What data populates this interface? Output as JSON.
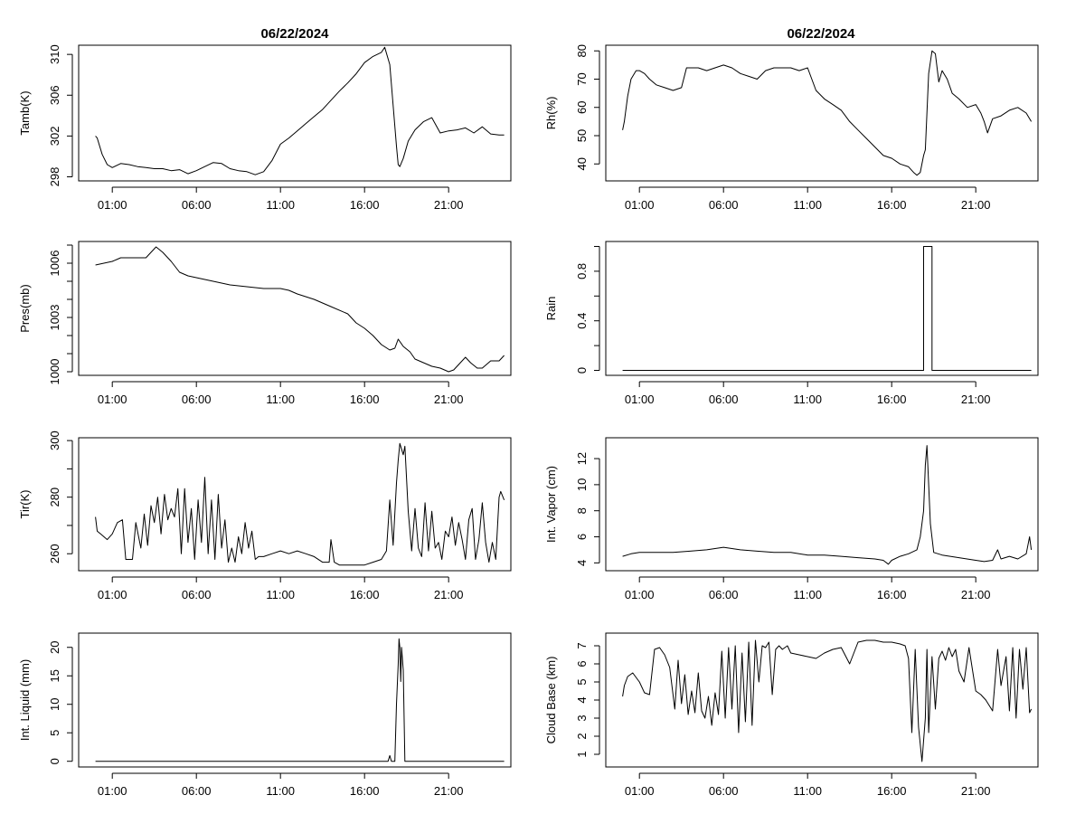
{
  "figure": {
    "date_left": "06/22/2024",
    "date_right": "06/22/2024"
  },
  "chart_data": [
    {
      "id": "tamb",
      "type": "line",
      "ylabel": "Tamb(K)",
      "title": "06/22/2024",
      "xlim": [
        -1.0,
        24.7
      ],
      "ylim": [
        297.6,
        310.9
      ],
      "yticks": [
        298,
        302,
        306,
        310
      ],
      "xticks": [
        "01:00",
        "06:00",
        "11:00",
        "16:00",
        "21:00"
      ],
      "xtick_values": [
        1,
        6,
        11,
        16,
        21
      ],
      "x": [
        0,
        0.1,
        0.4,
        0.7,
        1.0,
        1.5,
        2.0,
        2.5,
        3.0,
        3.5,
        4.0,
        4.5,
        5.0,
        5.5,
        6.0,
        6.5,
        7.0,
        7.5,
        8.0,
        8.5,
        9.0,
        9.5,
        10.0,
        10.5,
        11.0,
        11.5,
        12.0,
        12.5,
        13.0,
        13.5,
        14.0,
        14.5,
        15.0,
        15.5,
        16.0,
        16.5,
        17.0,
        17.2,
        17.5,
        17.7,
        17.9,
        18.0,
        18.1,
        18.3,
        18.6,
        19.0,
        19.5,
        20.0,
        20.5,
        21.0,
        21.5,
        22.0,
        22.5,
        23.0,
        23.5,
        24.0,
        24.3
      ],
      "y": [
        302.0,
        301.8,
        300.2,
        299.2,
        298.9,
        299.3,
        299.2,
        299.0,
        298.9,
        298.8,
        298.8,
        298.6,
        298.7,
        298.3,
        298.6,
        299.0,
        299.4,
        299.3,
        298.8,
        298.6,
        298.5,
        298.2,
        298.5,
        299.6,
        301.2,
        301.8,
        302.5,
        303.2,
        303.9,
        304.6,
        305.5,
        306.4,
        307.2,
        308.1,
        309.2,
        309.8,
        310.2,
        310.7,
        309.0,
        305.0,
        301.0,
        299.2,
        299.0,
        299.8,
        301.5,
        302.6,
        303.4,
        303.8,
        302.3,
        302.5,
        302.6,
        302.8,
        302.3,
        302.9,
        302.2,
        302.1,
        302.1
      ]
    },
    {
      "id": "pres",
      "type": "line",
      "ylabel": "Pres(mb)",
      "title": "",
      "xlim": [
        -1.0,
        24.7
      ],
      "ylim": [
        999.8,
        1007.2
      ],
      "yticks": [
        1000,
        1003,
        1006
      ],
      "yticks_minor": [
        1001,
        1002,
        1004,
        1005,
        1007
      ],
      "xticks": [
        "01:00",
        "06:00",
        "11:00",
        "16:00",
        "21:00"
      ],
      "xtick_values": [
        1,
        6,
        11,
        16,
        21
      ],
      "x": [
        0,
        0.5,
        1.0,
        1.5,
        2.0,
        2.5,
        3.0,
        3.3,
        3.6,
        4.0,
        4.5,
        5.0,
        5.5,
        6.0,
        7.0,
        8.0,
        9.0,
        10.0,
        11.0,
        11.5,
        12.0,
        13.0,
        14.0,
        15.0,
        15.5,
        16.0,
        16.5,
        17.0,
        17.5,
        17.8,
        18.0,
        18.3,
        18.7,
        19.0,
        19.5,
        20.0,
        20.5,
        21.0,
        21.3,
        21.7,
        22.0,
        22.3,
        22.7,
        23.0,
        23.5,
        24.0,
        24.3
      ],
      "y": [
        1005.9,
        1006.0,
        1006.1,
        1006.3,
        1006.3,
        1006.3,
        1006.3,
        1006.6,
        1006.9,
        1006.6,
        1006.1,
        1005.5,
        1005.3,
        1005.2,
        1005.0,
        1004.8,
        1004.7,
        1004.6,
        1004.6,
        1004.5,
        1004.3,
        1004.0,
        1003.6,
        1003.2,
        1002.7,
        1002.4,
        1002.0,
        1001.5,
        1001.2,
        1001.3,
        1001.8,
        1001.4,
        1001.1,
        1000.7,
        1000.5,
        1000.3,
        1000.2,
        1000.0,
        1000.1,
        1000.5,
        1000.8,
        1000.5,
        1000.2,
        1000.2,
        1000.6,
        1000.6,
        1000.9
      ]
    },
    {
      "id": "tir",
      "type": "line",
      "ylabel": "Tir(K)",
      "title": "",
      "xlim": [
        -1.0,
        24.7
      ],
      "ylim": [
        254.0,
        301.0
      ],
      "yticks": [
        260,
        280,
        300
      ],
      "yticks_minor": [
        270,
        290
      ],
      "xticks": [
        "01:00",
        "06:00",
        "11:00",
        "16:00",
        "21:00"
      ],
      "xtick_values": [
        1,
        6,
        11,
        16,
        21
      ],
      "x": [
        0,
        0.1,
        0.3,
        0.7,
        1.0,
        1.3,
        1.6,
        1.8,
        2.0,
        2.2,
        2.4,
        2.7,
        2.9,
        3.1,
        3.3,
        3.5,
        3.7,
        3.9,
        4.1,
        4.3,
        4.5,
        4.7,
        4.9,
        5.1,
        5.3,
        5.5,
        5.7,
        5.9,
        6.1,
        6.3,
        6.5,
        6.7,
        6.9,
        7.1,
        7.3,
        7.5,
        7.7,
        7.9,
        8.1,
        8.3,
        8.5,
        8.7,
        8.9,
        9.1,
        9.3,
        9.5,
        9.7,
        10.0,
        10.5,
        11.0,
        11.5,
        12.0,
        12.5,
        13.0,
        13.5,
        13.9,
        14.0,
        14.2,
        14.5,
        15.0,
        15.5,
        16.0,
        16.5,
        17.0,
        17.3,
        17.5,
        17.7,
        17.9,
        18.0,
        18.1,
        18.3,
        18.4,
        18.6,
        18.8,
        19.0,
        19.2,
        19.4,
        19.6,
        19.8,
        20.0,
        20.2,
        20.4,
        20.6,
        20.8,
        21.0,
        21.2,
        21.4,
        21.6,
        21.8,
        22.0,
        22.2,
        22.4,
        22.6,
        22.8,
        23.0,
        23.2,
        23.4,
        23.6,
        23.8,
        24.0,
        24.1,
        24.3
      ],
      "y": [
        273,
        268,
        267,
        265,
        267,
        271,
        272,
        258,
        258,
        258,
        271,
        262,
        274,
        263,
        277,
        271,
        280,
        267,
        281,
        272,
        276,
        273,
        283,
        260,
        283,
        264,
        276,
        258,
        279,
        264,
        287,
        260,
        279,
        258,
        281,
        262,
        272,
        257,
        262,
        257,
        266,
        260,
        271,
        262,
        268,
        258,
        259,
        259,
        260,
        261,
        260,
        261,
        260,
        259,
        257,
        257,
        265,
        257,
        256,
        256,
        256,
        256,
        257,
        258,
        261,
        279,
        263,
        285,
        293,
        299,
        295,
        298,
        275,
        261,
        276,
        262,
        259,
        278,
        261,
        275,
        262,
        264,
        258,
        268,
        266,
        273,
        263,
        271,
        265,
        258,
        272,
        276,
        258,
        265,
        278,
        264,
        257,
        264,
        258,
        280,
        282,
        279
      ]
    },
    {
      "id": "liq",
      "type": "line",
      "ylabel": "Int. Liquid (mm)",
      "title": "",
      "xlim": [
        -1.0,
        24.7
      ],
      "ylim": [
        -1.0,
        22.5
      ],
      "yticks": [
        0,
        5,
        10,
        15,
        20
      ],
      "xticks": [
        "01:00",
        "06:00",
        "11:00",
        "16:00",
        "21:00"
      ],
      "xtick_values": [
        1,
        6,
        11,
        16,
        21
      ],
      "x": [
        0,
        17.0,
        17.4,
        17.5,
        17.6,
        17.8,
        17.9,
        18.0,
        18.05,
        18.1,
        18.15,
        18.2,
        18.3,
        18.4,
        24.3
      ],
      "y": [
        0,
        0,
        0,
        1.0,
        0,
        0,
        10,
        17,
        21.5,
        20,
        14,
        20,
        16,
        0,
        0
      ]
    },
    {
      "id": "rh",
      "type": "line",
      "ylabel": "Rh(%)",
      "title": "06/22/2024",
      "xlim": [
        -1.0,
        24.7
      ],
      "ylim": [
        34.0,
        82.0
      ],
      "yticks": [
        40,
        50,
        60,
        70,
        80
      ],
      "xticks": [
        "01:00",
        "06:00",
        "11:00",
        "16:00",
        "21:00"
      ],
      "xtick_values": [
        1,
        6,
        11,
        16,
        21
      ],
      "x": [
        0,
        0.1,
        0.3,
        0.5,
        0.8,
        1.0,
        1.3,
        1.6,
        2.0,
        2.5,
        3.0,
        3.5,
        3.8,
        4.0,
        4.5,
        5.0,
        5.5,
        6.0,
        6.5,
        7.0,
        7.5,
        8.0,
        8.5,
        9.0,
        9.5,
        10.0,
        10.5,
        11.0,
        11.5,
        12.0,
        12.5,
        13.0,
        13.5,
        14.0,
        14.5,
        15.0,
        15.5,
        16.0,
        16.5,
        17.0,
        17.3,
        17.5,
        17.7,
        17.9,
        18.0,
        18.2,
        18.4,
        18.6,
        18.8,
        19.0,
        19.3,
        19.6,
        20.0,
        20.5,
        21.0,
        21.3,
        21.5,
        21.7,
        22.0,
        22.5,
        23.0,
        23.5,
        24.0,
        24.3
      ],
      "y": [
        52,
        55,
        64,
        70,
        73,
        73,
        72,
        70,
        68,
        67,
        66,
        67,
        74,
        74,
        74,
        73,
        74,
        75,
        74,
        72,
        71,
        70,
        73,
        74,
        74,
        74,
        73,
        74,
        66,
        63,
        61,
        59,
        55,
        52,
        49,
        46,
        43,
        42,
        40,
        39,
        37,
        36,
        37,
        43,
        45,
        72,
        80,
        79,
        69,
        73,
        70,
        65,
        63,
        60,
        61,
        58,
        55,
        51,
        56,
        57,
        59,
        60,
        58,
        55
      ]
    },
    {
      "id": "rain",
      "type": "line",
      "ylabel": "Rain",
      "title": "",
      "xlim": [
        -1.0,
        24.7
      ],
      "ylim": [
        -0.04,
        1.04
      ],
      "yticks": [
        0.0,
        0.4,
        0.8
      ],
      "yticks_minor": [
        0.2,
        0.6,
        1.0
      ],
      "xticks": [
        "01:00",
        "06:00",
        "11:00",
        "16:00",
        "21:00"
      ],
      "xtick_values": [
        1,
        6,
        11,
        16,
        21
      ],
      "x": [
        0,
        17.9,
        17.9,
        18.4,
        18.4,
        24.3
      ],
      "y": [
        0,
        0,
        1,
        1,
        0,
        0
      ]
    },
    {
      "id": "vapor",
      "type": "line",
      "ylabel": "Int. Vapor (cm)",
      "title": "",
      "xlim": [
        -1.0,
        24.7
      ],
      "ylim": [
        3.4,
        13.6
      ],
      "yticks": [
        4,
        6,
        8,
        10,
        12
      ],
      "xticks": [
        "01:00",
        "06:00",
        "11:00",
        "16:00",
        "21:00"
      ],
      "xtick_values": [
        1,
        6,
        11,
        16,
        21
      ],
      "x": [
        0,
        0.5,
        1.0,
        2.0,
        3.0,
        4.0,
        5.0,
        6.0,
        6.5,
        7.0,
        8.0,
        9.0,
        10.0,
        11.0,
        12.0,
        13.0,
        14.0,
        15.0,
        15.5,
        15.8,
        16.0,
        16.5,
        17.0,
        17.5,
        17.7,
        17.9,
        18.0,
        18.1,
        18.2,
        18.3,
        18.5,
        19.0,
        20.0,
        21.0,
        21.5,
        22.0,
        22.3,
        22.5,
        23.0,
        23.5,
        24.0,
        24.2,
        24.3
      ],
      "y": [
        4.5,
        4.7,
        4.8,
        4.8,
        4.8,
        4.9,
        5.0,
        5.2,
        5.1,
        5.0,
        4.9,
        4.8,
        4.8,
        4.6,
        4.6,
        4.5,
        4.4,
        4.3,
        4.2,
        3.9,
        4.2,
        4.5,
        4.7,
        5.0,
        6.0,
        8.0,
        11.5,
        13.0,
        10.0,
        7.0,
        4.8,
        4.6,
        4.4,
        4.2,
        4.1,
        4.2,
        5.0,
        4.3,
        4.5,
        4.3,
        4.7,
        6.0,
        5.0
      ]
    },
    {
      "id": "cloud",
      "type": "line",
      "ylabel": "Cloud Base (km)",
      "title": "",
      "xlim": [
        -1.0,
        24.7
      ],
      "ylim": [
        0.3,
        7.7
      ],
      "yticks": [
        1,
        2,
        3,
        4,
        5,
        6,
        7
      ],
      "xticks": [
        "01:00",
        "06:00",
        "11:00",
        "16:00",
        "21:00"
      ],
      "xtick_values": [
        1,
        6,
        11,
        16,
        21
      ],
      "x": [
        0,
        0.1,
        0.3,
        0.6,
        1.0,
        1.3,
        1.6,
        1.9,
        2.2,
        2.5,
        2.8,
        3.1,
        3.3,
        3.5,
        3.7,
        3.9,
        4.1,
        4.3,
        4.5,
        4.7,
        4.9,
        5.1,
        5.3,
        5.5,
        5.7,
        5.9,
        6.1,
        6.3,
        6.5,
        6.7,
        6.9,
        7.1,
        7.3,
        7.5,
        7.7,
        7.9,
        8.1,
        8.3,
        8.5,
        8.7,
        8.9,
        9.1,
        9.3,
        9.5,
        9.8,
        10.0,
        10.5,
        11.0,
        11.5,
        12.0,
        12.5,
        13.0,
        13.5,
        14.0,
        14.5,
        15.0,
        15.5,
        16.0,
        16.5,
        16.8,
        17.0,
        17.2,
        17.4,
        17.6,
        17.8,
        18.0,
        18.1,
        18.2,
        18.4,
        18.6,
        18.8,
        19.0,
        19.2,
        19.4,
        19.6,
        19.8,
        20.0,
        20.3,
        20.6,
        21.0,
        21.3,
        21.6,
        22.0,
        22.3,
        22.5,
        22.8,
        23.0,
        23.2,
        23.4,
        23.6,
        23.8,
        24.0,
        24.2,
        24.3
      ],
      "y": [
        4.2,
        4.8,
        5.3,
        5.5,
        5.0,
        4.4,
        4.3,
        6.8,
        6.9,
        6.5,
        5.8,
        3.5,
        6.2,
        3.8,
        5.4,
        3.2,
        4.5,
        3.3,
        5.5,
        3.4,
        3.0,
        4.2,
        2.6,
        4.4,
        3.2,
        6.7,
        3.0,
        6.9,
        3.5,
        7.0,
        2.2,
        6.6,
        2.8,
        7.2,
        2.6,
        7.3,
        5.0,
        7.0,
        6.9,
        7.2,
        4.3,
        6.8,
        7.0,
        6.8,
        7.0,
        6.6,
        6.5,
        6.4,
        6.3,
        6.6,
        6.8,
        6.9,
        6.0,
        7.2,
        7.3,
        7.3,
        7.2,
        7.2,
        7.1,
        7.0,
        6.3,
        2.2,
        6.8,
        2.5,
        0.6,
        3.0,
        6.8,
        2.2,
        6.4,
        3.5,
        6.3,
        6.7,
        6.2,
        6.9,
        6.4,
        6.8,
        5.6,
        5.0,
        6.9,
        4.5,
        4.3,
        4.0,
        3.4,
        6.8,
        4.8,
        6.4,
        3.4,
        6.9,
        3.0,
        6.8,
        4.6,
        6.9,
        3.3,
        3.5
      ]
    }
  ]
}
